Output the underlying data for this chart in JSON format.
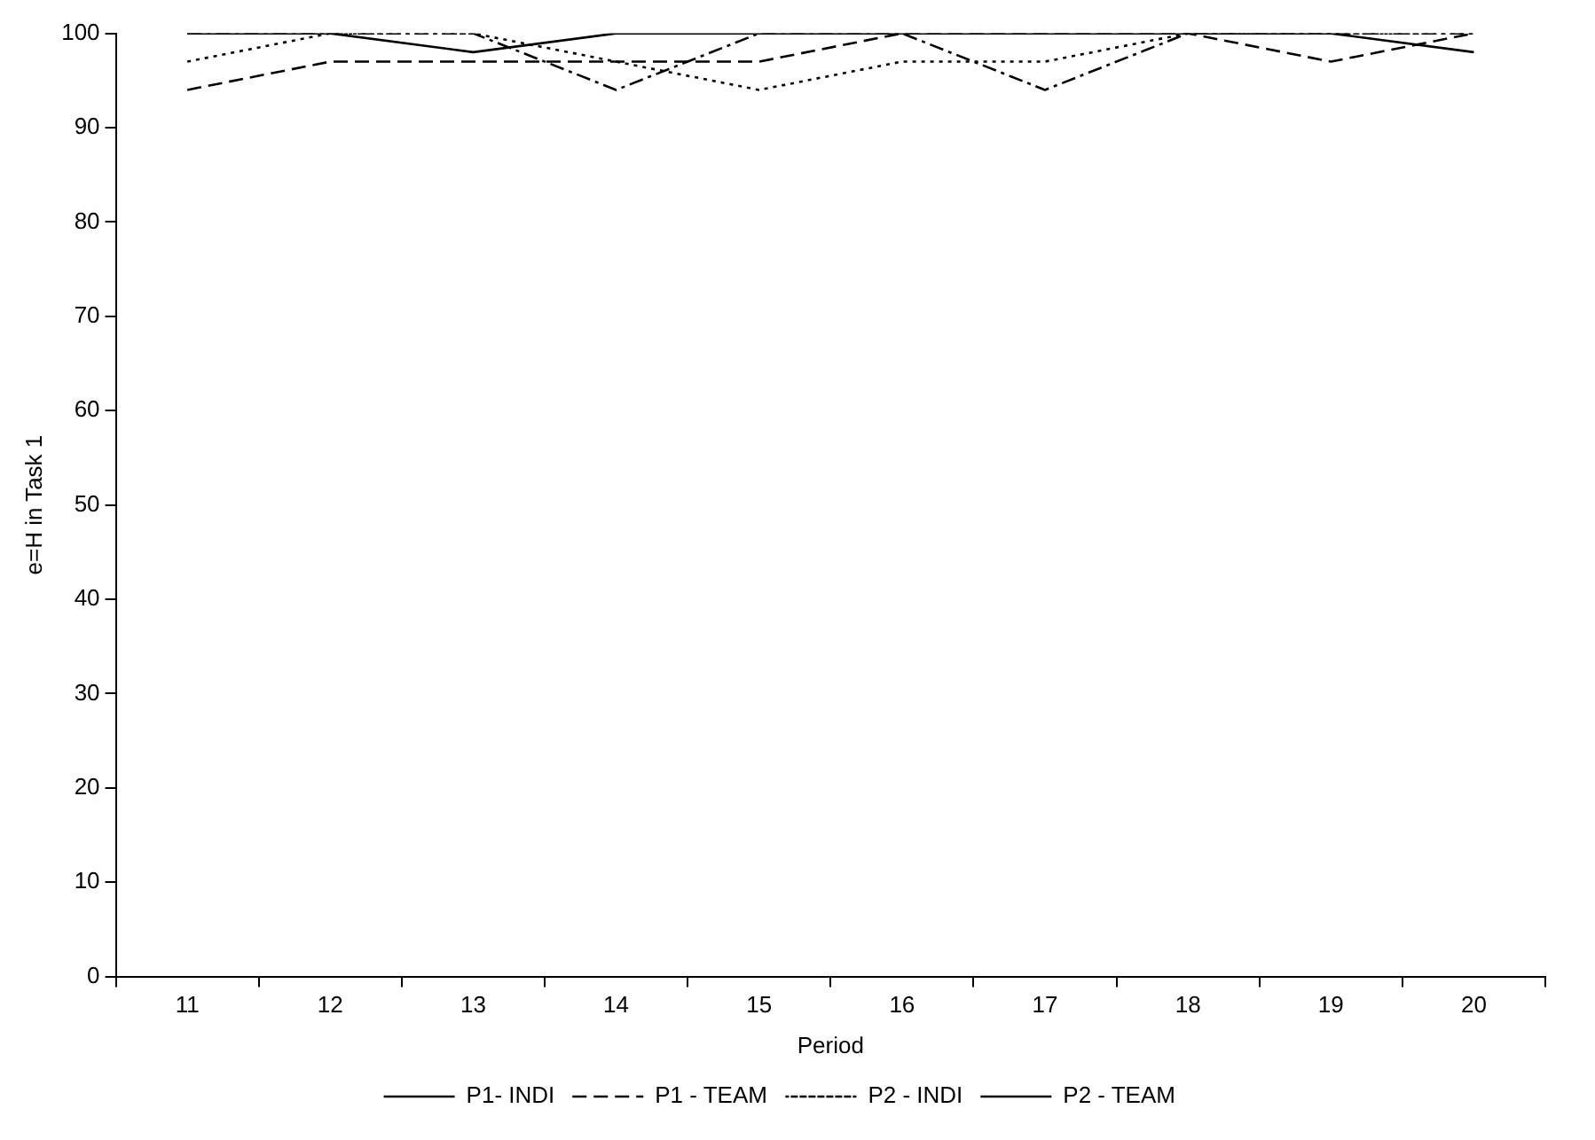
{
  "chart_data": {
    "type": "line",
    "xlabel": "Period",
    "ylabel": "e=H in Task 1",
    "categories": [
      "11",
      "12",
      "13",
      "14",
      "15",
      "16",
      "17",
      "18",
      "19",
      "20"
    ],
    "series": [
      {
        "name": "P1- INDI",
        "color": "#000000",
        "line_style": "solid",
        "values": [
          100,
          100,
          98,
          100,
          100,
          100,
          100,
          100,
          100,
          98
        ]
      },
      {
        "name": "P1 - TEAM",
        "color": "#000000",
        "line_style": "dashed",
        "values": [
          94,
          97,
          97,
          97,
          97,
          100,
          100,
          100,
          97,
          100
        ]
      },
      {
        "name": "P2 - INDI",
        "color": "#000000",
        "line_style": "dotted",
        "values": [
          97,
          100,
          100,
          97,
          94,
          97,
          97,
          100,
          100,
          100
        ]
      },
      {
        "name": "P2 - TEAM",
        "color": "#000000",
        "line_style": "dashdot",
        "values": [
          100,
          100,
          100,
          94,
          100,
          100,
          94,
          100,
          100,
          100
        ]
      }
    ],
    "ylim": [
      0,
      100
    ],
    "yticks": [
      0,
      10,
      20,
      30,
      40,
      50,
      60,
      70,
      80,
      90,
      100
    ],
    "grid": false,
    "legend": "bottom",
    "marker": "none"
  }
}
